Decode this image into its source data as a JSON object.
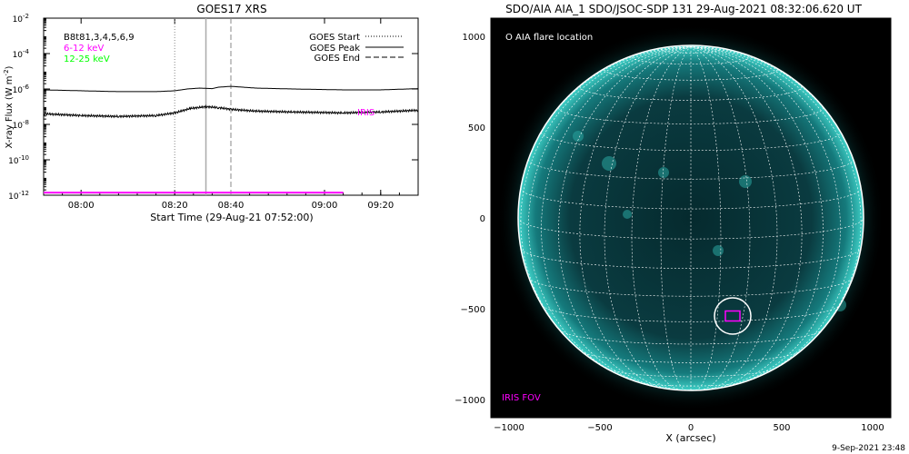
{
  "footer": {
    "timestamp": "9-Sep-2021 23:48"
  },
  "colors": {
    "magenta": "#ff00ff",
    "green": "#00ff00",
    "cyan": "#00c8c8",
    "black": "#000000",
    "white": "#ffffff"
  },
  "chart_data": [
    {
      "type": "line",
      "title": "GOES17 XRS",
      "xlabel": "Start Time (29-Aug-21 07:52:00)",
      "ylabel": "X-ray Flux (W m^-2)",
      "ylabel_base": "X-ray Flux (W m",
      "ylabel_exp": "-2",
      "ylabel_close": ")",
      "y_scale": "log",
      "ylim_exp": [
        -12,
        -2
      ],
      "xlim_min": [
        -12,
        108
      ],
      "x_ticks": [
        {
          "min": 0,
          "label": "08:00"
        },
        {
          "min": 30,
          "label": "08:20"
        },
        {
          "min": 48,
          "label": "08:40"
        },
        {
          "min": 78,
          "label": "09:00"
        },
        {
          "min": 96,
          "label": "09:20"
        }
      ],
      "y_ticks": [
        {
          "exp": -2,
          "label": "10",
          "sup": "-2"
        },
        {
          "exp": -4,
          "label": "10",
          "sup": "-4"
        },
        {
          "exp": -6,
          "label": "10",
          "sup": "-6"
        },
        {
          "exp": -8,
          "label": "10",
          "sup": "-8"
        },
        {
          "exp": -10,
          "label": "10",
          "sup": "-10"
        },
        {
          "exp": -12,
          "label": "10",
          "sup": "-12"
        }
      ],
      "legend_left": [
        {
          "text": "B8t81,3,4,5,6,9",
          "color": "#000000"
        },
        {
          "text": "6-12 keV",
          "color": "#ff00ff"
        },
        {
          "text": "12-25 keV",
          "color": "#00ff00"
        }
      ],
      "legend_right": [
        {
          "text": "GOES Start",
          "style": "dotted"
        },
        {
          "text": "GOES Peak",
          "style": "solid"
        },
        {
          "text": "GOES End",
          "style": "dashed"
        }
      ],
      "markers": {
        "goes_start": 30,
        "goes_peak": 40,
        "goes_end": 48
      },
      "annotations": [
        {
          "text": "IRIS",
          "color": "#ff00ff"
        }
      ],
      "series": [
        {
          "color": "#000000",
          "points": [
            [
              -12,
              -6.05
            ],
            [
              0,
              -6.1
            ],
            [
              12,
              -6.15
            ],
            [
              24,
              -6.15
            ],
            [
              30,
              -6.1
            ],
            [
              34,
              -6.0
            ],
            [
              38,
              -5.95
            ],
            [
              42,
              -5.98
            ],
            [
              44,
              -5.9
            ],
            [
              48,
              -5.85
            ],
            [
              56,
              -5.95
            ],
            [
              68,
              -6.0
            ],
            [
              84,
              -6.05
            ],
            [
              96,
              -6.05
            ],
            [
              108,
              -5.98
            ]
          ]
        },
        {
          "color": "#000000",
          "points": [
            [
              -12,
              -7.4
            ],
            [
              0,
              -7.5
            ],
            [
              12,
              -7.55
            ],
            [
              24,
              -7.5
            ],
            [
              30,
              -7.35
            ],
            [
              35,
              -7.1
            ],
            [
              40,
              -7.0
            ],
            [
              44,
              -7.05
            ],
            [
              48,
              -7.15
            ],
            [
              56,
              -7.25
            ],
            [
              68,
              -7.3
            ],
            [
              84,
              -7.35
            ],
            [
              96,
              -7.3
            ],
            [
              108,
              -7.2
            ]
          ]
        },
        {
          "color": "#ff00ff",
          "points": [
            [
              -12,
              -11.85
            ],
            [
              84,
              -11.85
            ]
          ]
        }
      ]
    },
    {
      "type": "image",
      "title": "SDO/AIA AIA_1 SDO/JSOC-SDP 131 29-Aug-2021 08:32:06.620 UT",
      "xlabel": "X (arcsec)",
      "xlim": [
        -1100,
        1100
      ],
      "ylim": [
        -1100,
        1100
      ],
      "x_ticks": [
        -1000,
        -500,
        0,
        500,
        1000
      ],
      "y_ticks": [
        1000,
        500,
        0,
        -500,
        -1000
      ],
      "solar_radius_arcsec": 950,
      "legend": "O AIA flare location",
      "fov_label": "IRIS FOV",
      "flare_location": {
        "x": 230,
        "y": -540
      }
    }
  ]
}
